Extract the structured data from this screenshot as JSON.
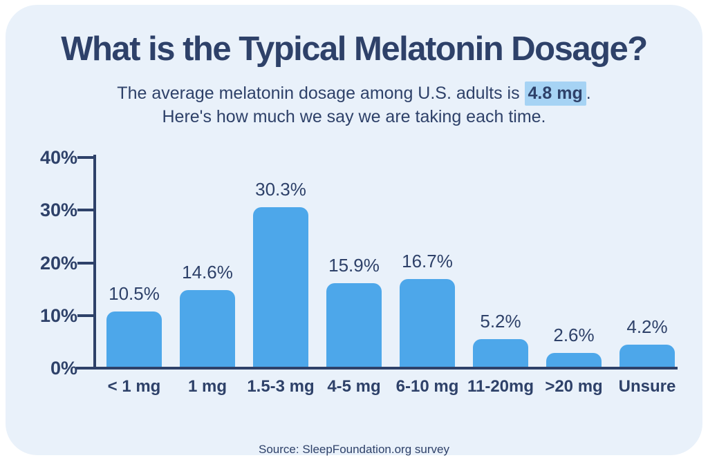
{
  "title": "What is the Typical Melatonin Dosage?",
  "subtitle": {
    "line1_prefix": "The average melatonin dosage among U.S. adults is ",
    "highlight": "4.8 mg",
    "line1_suffix": ".",
    "line2": "Here's how much we say we are taking each time."
  },
  "source": "Source: SleepFoundation.org survey",
  "colors": {
    "page_background": "#FFFFFF",
    "card_background": "#E9F1FA",
    "text_navy": "#2E4169",
    "bar_blue": "#4DA7EA",
    "highlight_blue": "#A6D3F4"
  },
  "chart_data": {
    "type": "bar",
    "title": "What is the Typical Melatonin Dosage?",
    "categories": [
      "< 1 mg",
      "1 mg",
      "1.5-3 mg",
      "4-5 mg",
      "6-10 mg",
      "11-20mg",
      ">20 mg",
      "Unsure"
    ],
    "values": [
      10.5,
      14.6,
      30.3,
      15.9,
      16.7,
      5.2,
      2.6,
      4.2
    ],
    "value_labels": [
      "10.5%",
      "14.6%",
      "30.3%",
      "15.9%",
      "16.7%",
      "5.2%",
      "2.6%",
      "4.2%"
    ],
    "xlabel": "",
    "ylabel": "",
    "ylim": [
      0,
      40
    ],
    "yticks": [
      {
        "value": 40,
        "label": "40%"
      },
      {
        "value": 30,
        "label": "30%"
      },
      {
        "value": 20,
        "label": "20%"
      },
      {
        "value": 10,
        "label": "10%"
      },
      {
        "value": 0,
        "label": "0%"
      }
    ],
    "grid": false,
    "legend_position": "none",
    "bar_color": "#4DA7EA"
  }
}
